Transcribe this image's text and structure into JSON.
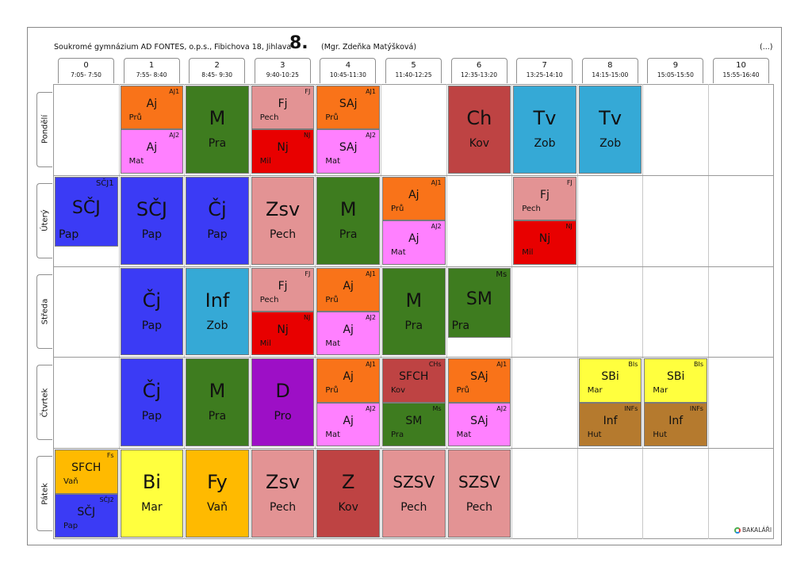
{
  "header": {
    "school": "Soukromé gymnázium AD FONTES, o.p.s., Fibichova 18, Jihlava",
    "class_name": "8.",
    "teacher": "(Mgr. Zdeňka Matýšková)",
    "ellipsis": "(...)"
  },
  "periods": [
    {
      "num": "0",
      "time": "7:05- 7:50"
    },
    {
      "num": "1",
      "time": "7:55- 8:40"
    },
    {
      "num": "2",
      "time": "8:45- 9:30"
    },
    {
      "num": "3",
      "time": "9:40-10:25"
    },
    {
      "num": "4",
      "time": "10:45-11:30"
    },
    {
      "num": "5",
      "time": "11:40-12:25"
    },
    {
      "num": "6",
      "time": "12:35-13:20"
    },
    {
      "num": "7",
      "time": "13:25-14:10"
    },
    {
      "num": "8",
      "time": "14:15-15:00"
    },
    {
      "num": "9",
      "time": "15:05-15:50"
    },
    {
      "num": "10",
      "time": "15:55-16:40"
    }
  ],
  "days": [
    "Pondělí",
    "Úterý",
    "Středa",
    "Čtvrtek",
    "Pátek"
  ],
  "colors": {
    "orange": "#f97319",
    "pink": "#ff80ff",
    "green": "#3e7c1f",
    "salmon": "#e39394",
    "red": "#e80000",
    "brick": "#be4343",
    "cyan": "#35a9d6",
    "blue": "#3b3bf5",
    "purple": "#9d0fc6",
    "yellow": "#ffff3e",
    "brown": "#b57a2e",
    "gold": "#ffba00"
  },
  "lessons": [
    {
      "day": 0,
      "period": 1,
      "kind": "top",
      "subject": "Aj",
      "teacher": "Prů",
      "group": "AJ1",
      "color": "orange"
    },
    {
      "day": 0,
      "period": 1,
      "kind": "bottom",
      "subject": "Aj",
      "teacher": "Mat",
      "group": "AJ2",
      "color": "pink"
    },
    {
      "day": 0,
      "period": 2,
      "kind": "full",
      "subject": "M",
      "teacher": "Pra",
      "group": "",
      "color": "green"
    },
    {
      "day": 0,
      "period": 3,
      "kind": "top",
      "subject": "Fj",
      "teacher": "Pech",
      "group": "FJ",
      "color": "salmon"
    },
    {
      "day": 0,
      "period": 3,
      "kind": "bottom",
      "subject": "Nj",
      "teacher": "Mil",
      "group": "NJ",
      "color": "red"
    },
    {
      "day": 0,
      "period": 4,
      "kind": "top",
      "subject": "SAj",
      "teacher": "Prů",
      "group": "AJ1",
      "color": "orange"
    },
    {
      "day": 0,
      "period": 4,
      "kind": "bottom",
      "subject": "SAj",
      "teacher": "Mat",
      "group": "AJ2",
      "color": "pink"
    },
    {
      "day": 0,
      "period": 6,
      "kind": "full",
      "subject": "Ch",
      "teacher": "Kov",
      "group": "",
      "color": "brick"
    },
    {
      "day": 0,
      "period": 7,
      "kind": "full",
      "subject": "Tv",
      "teacher": "Zob",
      "group": "",
      "color": "cyan"
    },
    {
      "day": 0,
      "period": 8,
      "kind": "full",
      "subject": "Tv",
      "teacher": "Zob",
      "group": "",
      "color": "cyan"
    },
    {
      "day": 1,
      "period": 0,
      "kind": "sc",
      "subject": "SČJ",
      "teacher": "Pap",
      "group": "SČJ1",
      "color": "blue"
    },
    {
      "day": 1,
      "period": 1,
      "kind": "full",
      "subject": "SČJ",
      "teacher": "Pap",
      "group": "",
      "color": "blue"
    },
    {
      "day": 1,
      "period": 2,
      "kind": "full",
      "subject": "Čj",
      "teacher": "Pap",
      "group": "",
      "color": "blue"
    },
    {
      "day": 1,
      "period": 3,
      "kind": "full",
      "subject": "Zsv",
      "teacher": "Pech",
      "group": "",
      "color": "salmon"
    },
    {
      "day": 1,
      "period": 4,
      "kind": "full",
      "subject": "M",
      "teacher": "Pra",
      "group": "",
      "color": "green"
    },
    {
      "day": 1,
      "period": 5,
      "kind": "top",
      "subject": "Aj",
      "teacher": "Prů",
      "group": "AJ1",
      "color": "orange"
    },
    {
      "day": 1,
      "period": 5,
      "kind": "bottom",
      "subject": "Aj",
      "teacher": "Mat",
      "group": "AJ2",
      "color": "pink"
    },
    {
      "day": 1,
      "period": 7,
      "kind": "top",
      "subject": "Fj",
      "teacher": "Pech",
      "group": "FJ",
      "color": "salmon"
    },
    {
      "day": 1,
      "period": 7,
      "kind": "bottom",
      "subject": "Nj",
      "teacher": "Mil",
      "group": "NJ",
      "color": "red"
    },
    {
      "day": 2,
      "period": 1,
      "kind": "full",
      "subject": "Čj",
      "teacher": "Pap",
      "group": "",
      "color": "blue"
    },
    {
      "day": 2,
      "period": 2,
      "kind": "full",
      "subject": "Inf",
      "teacher": "Zob",
      "group": "",
      "color": "cyan"
    },
    {
      "day": 2,
      "period": 3,
      "kind": "top",
      "subject": "Fj",
      "teacher": "Pech",
      "group": "FJ",
      "color": "salmon"
    },
    {
      "day": 2,
      "period": 3,
      "kind": "bottom",
      "subject": "Nj",
      "teacher": "Mil",
      "group": "NJ",
      "color": "red"
    },
    {
      "day": 2,
      "period": 4,
      "kind": "top",
      "subject": "Aj",
      "teacher": "Prů",
      "group": "AJ1",
      "color": "orange"
    },
    {
      "day": 2,
      "period": 4,
      "kind": "bottom",
      "subject": "Aj",
      "teacher": "Mat",
      "group": "AJ2",
      "color": "pink"
    },
    {
      "day": 2,
      "period": 5,
      "kind": "full",
      "subject": "M",
      "teacher": "Pra",
      "group": "",
      "color": "green"
    },
    {
      "day": 2,
      "period": 6,
      "kind": "ms",
      "subject": "SM",
      "teacher": "Pra",
      "group": "Ms",
      "color": "green"
    },
    {
      "day": 3,
      "period": 1,
      "kind": "full",
      "subject": "Čj",
      "teacher": "Pap",
      "group": "",
      "color": "blue"
    },
    {
      "day": 3,
      "period": 2,
      "kind": "full",
      "subject": "M",
      "teacher": "Pra",
      "group": "",
      "color": "green"
    },
    {
      "day": 3,
      "period": 3,
      "kind": "full",
      "subject": "D",
      "teacher": "Pro",
      "group": "",
      "color": "purple"
    },
    {
      "day": 3,
      "period": 4,
      "kind": "top",
      "subject": "Aj",
      "teacher": "Prů",
      "group": "AJ1",
      "color": "orange"
    },
    {
      "day": 3,
      "period": 4,
      "kind": "bottom",
      "subject": "Aj",
      "teacher": "Mat",
      "group": "AJ2",
      "color": "pink"
    },
    {
      "day": 3,
      "period": 5,
      "kind": "top",
      "subject": "SFCH",
      "teacher": "Kov",
      "group": "CHs",
      "color": "brick"
    },
    {
      "day": 3,
      "period": 5,
      "kind": "bottom",
      "subject": "SM",
      "teacher": "Pra",
      "group": "Ms",
      "color": "green"
    },
    {
      "day": 3,
      "period": 6,
      "kind": "top",
      "subject": "SAj",
      "teacher": "Prů",
      "group": "AJ1",
      "color": "orange"
    },
    {
      "day": 3,
      "period": 6,
      "kind": "bottom",
      "subject": "SAj",
      "teacher": "Mat",
      "group": "AJ2",
      "color": "pink"
    },
    {
      "day": 3,
      "period": 8,
      "kind": "top",
      "subject": "SBi",
      "teacher": "Mar",
      "group": "BIs",
      "color": "yellow"
    },
    {
      "day": 3,
      "period": 8,
      "kind": "bottom",
      "subject": "Inf",
      "teacher": "Hut",
      "group": "INFs",
      "color": "brown"
    },
    {
      "day": 3,
      "period": 9,
      "kind": "top",
      "subject": "SBi",
      "teacher": "Mar",
      "group": "BIs",
      "color": "yellow"
    },
    {
      "day": 3,
      "period": 9,
      "kind": "bottom",
      "subject": "Inf",
      "teacher": "Hut",
      "group": "INFs",
      "color": "brown"
    },
    {
      "day": 4,
      "period": 0,
      "kind": "top",
      "subject": "SFCH",
      "teacher": "Vaň",
      "group": "Fs",
      "color": "gold"
    },
    {
      "day": 4,
      "period": 0,
      "kind": "bottom",
      "subject": "SČJ",
      "teacher": "Pap",
      "group": "SČJ2",
      "color": "blue"
    },
    {
      "day": 4,
      "period": 1,
      "kind": "full",
      "subject": "Bi",
      "teacher": "Mar",
      "group": "",
      "color": "yellow"
    },
    {
      "day": 4,
      "period": 2,
      "kind": "full",
      "subject": "Fy",
      "teacher": "Vaň",
      "group": "",
      "color": "gold"
    },
    {
      "day": 4,
      "period": 3,
      "kind": "full",
      "subject": "Zsv",
      "teacher": "Pech",
      "group": "",
      "color": "salmon"
    },
    {
      "day": 4,
      "period": 4,
      "kind": "full",
      "subject": "Z",
      "teacher": "Kov",
      "group": "",
      "color": "brick"
    },
    {
      "day": 4,
      "period": 5,
      "kind": "full",
      "subject": "SZSV",
      "teacher": "Pech",
      "group": "",
      "color": "salmon"
    },
    {
      "day": 4,
      "period": 6,
      "kind": "full",
      "subject": "SZSV",
      "teacher": "Pech",
      "group": "",
      "color": "salmon"
    }
  ],
  "logo_text": "BAKALÁŘI"
}
